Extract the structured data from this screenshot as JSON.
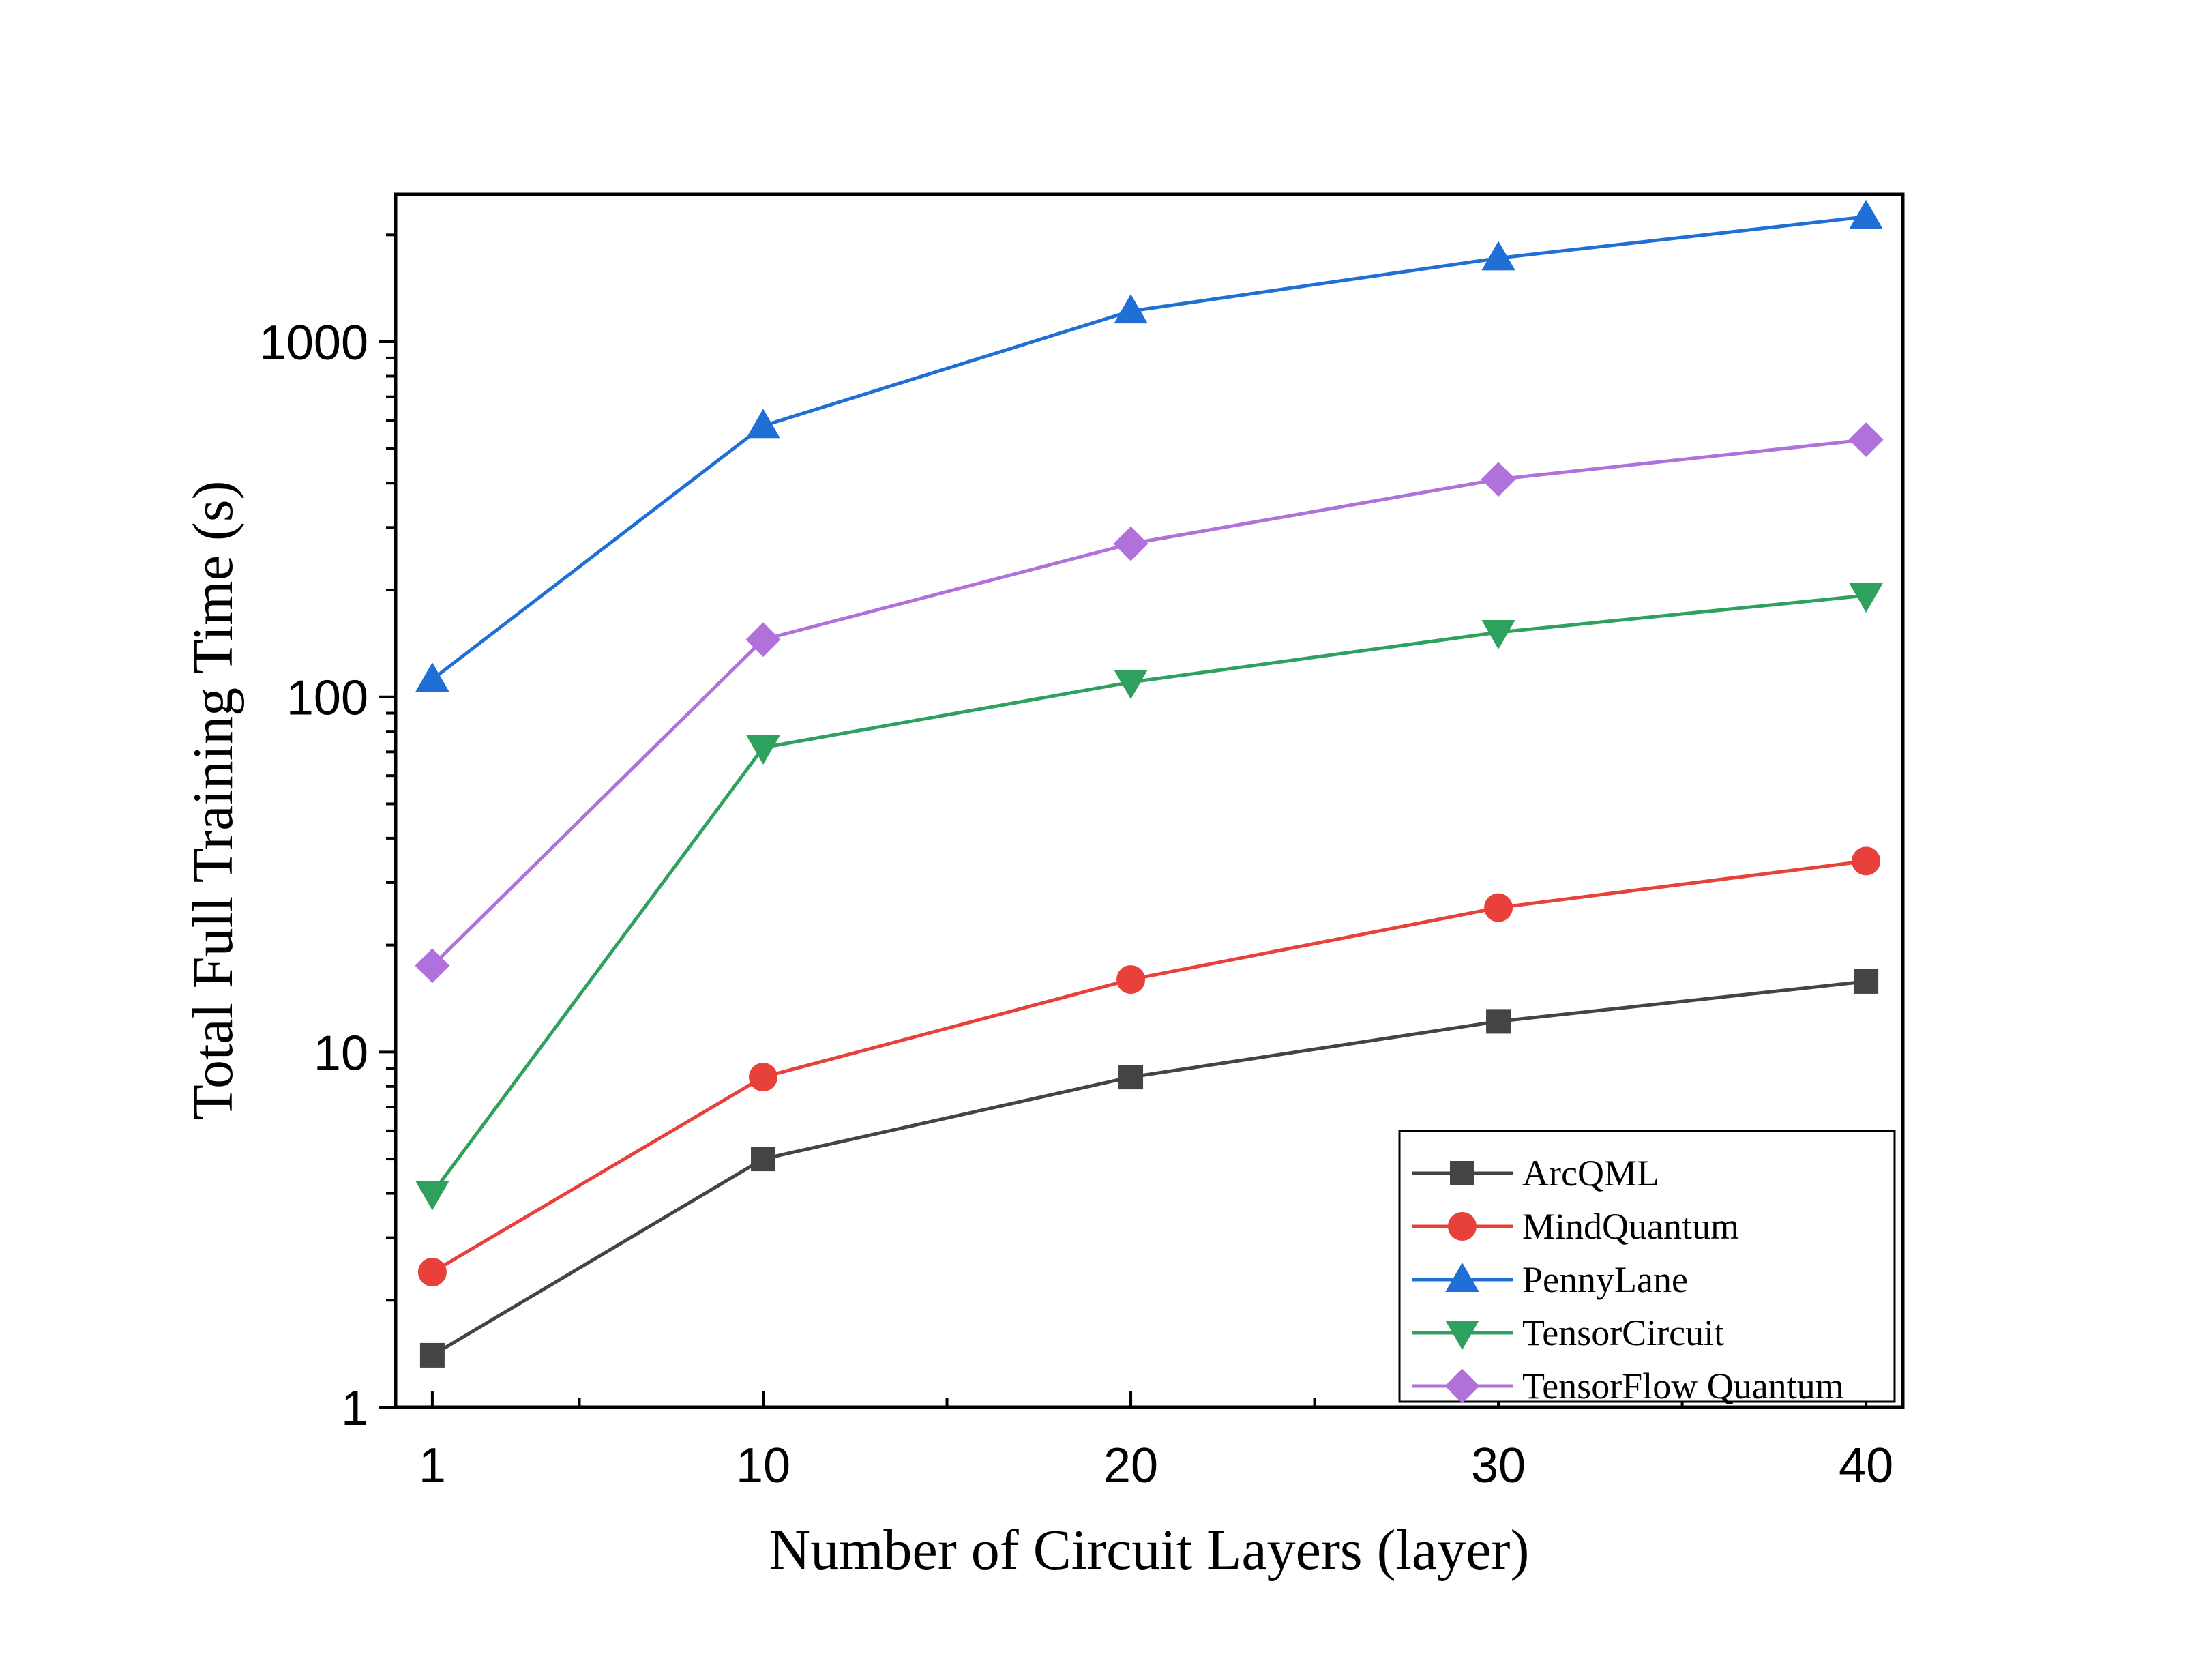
{
  "chart_data": {
    "type": "line",
    "xlabel": "Number of Circuit Layers (layer)",
    "ylabel": "Total Full Training Time (s)",
    "x": [
      1,
      10,
      20,
      30,
      40
    ],
    "xlim": [
      0,
      41
    ],
    "ylim": [
      1,
      2600
    ],
    "yscale": "log",
    "xticks": [
      1,
      10,
      20,
      30,
      40
    ],
    "xtick_labels": [
      "1",
      "10",
      "20",
      "30",
      "40"
    ],
    "xminor": [
      5,
      15,
      25,
      35
    ],
    "yticks": [
      1,
      10,
      100,
      1000
    ],
    "ytick_labels": [
      "1",
      "10",
      "100",
      "1000"
    ],
    "grid": false,
    "legend_position": "bottom-right",
    "series": [
      {
        "name": "ArcQML",
        "values": [
          1.4,
          5.0,
          8.5,
          12.2,
          15.8
        ],
        "color": "#444444",
        "marker": "square"
      },
      {
        "name": "MindQuantum",
        "values": [
          2.4,
          8.5,
          16.0,
          25.5,
          34.5
        ],
        "color": "#e8403a",
        "marker": "circle"
      },
      {
        "name": "PennyLane",
        "values": [
          112,
          580,
          1220,
          1720,
          2250
        ],
        "color": "#1f6fd6",
        "marker": "triangle-up"
      },
      {
        "name": "TensorCircuit",
        "values": [
          4.0,
          72,
          110,
          152,
          193
        ],
        "color": "#2ea15f",
        "marker": "triangle-down"
      },
      {
        "name": "TensorFlow Quantum",
        "values": [
          17.5,
          145,
          270,
          410,
          530
        ],
        "color": "#b071db",
        "marker": "diamond"
      }
    ]
  }
}
